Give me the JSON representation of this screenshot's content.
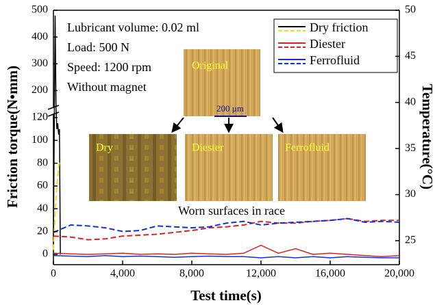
{
  "chart_data": {
    "type": "line",
    "x_label": "Test time(s)",
    "y_label": "Friction torque(N•mm)",
    "y2_label": "Temperature(°C)",
    "annotations": [
      "Lubricant volume: 0.02 ml",
      "Load: 500 N",
      "Speed: 1200 rpm",
      "Without magnet"
    ],
    "inset_labels": [
      "Original",
      "Dry",
      "Diester",
      "Ferrofluid"
    ],
    "scale_bar": "200 μm",
    "inset_caption": "Worn surfaces in race",
    "xlim": [
      0,
      20000
    ],
    "xticks": [
      0,
      {
        "value": 4000,
        "label": "4,000"
      },
      {
        "value": 8000,
        "label": "8,000"
      },
      {
        "value": 12000,
        "label": "12,000"
      },
      {
        "value": 16000,
        "label": "16,000"
      },
      {
        "value": 20000,
        "label": "20,000"
      }
    ],
    "ylim": [
      -9,
      500
    ],
    "y_break": [
      120,
      150
    ],
    "yticks": [
      0,
      20,
      40,
      60,
      80,
      100,
      120,
      200,
      300,
      400,
      500
    ],
    "y2lim": [
      22.4,
      50
    ],
    "y2ticks": [
      25,
      30,
      35,
      40,
      45,
      50
    ],
    "legend": "upper right",
    "series": [
      {
        "name": "Dry friction",
        "color": "#000000",
        "x": [
          0,
          50,
          100,
          150,
          200,
          250,
          300,
          350,
          400
        ],
        "values": [
          10,
          120,
          480,
          130,
          110,
          115,
          105,
          110,
          0
        ]
      },
      {
        "name": "Diester",
        "color": "#e02020",
        "x": [
          0,
          1000,
          2000,
          3000,
          4000,
          5000,
          6000,
          7000,
          8000,
          9000,
          10000,
          11000,
          12000,
          13000,
          14000,
          15000,
          16000,
          17000,
          18000,
          19000,
          20000
        ],
        "values": [
          1,
          0.5,
          0,
          0.5,
          1,
          0,
          0.5,
          0,
          1,
          0.5,
          0,
          1,
          8,
          1,
          5,
          0,
          1,
          0,
          -1,
          -2,
          -1
        ]
      },
      {
        "name": "Ferrofluid",
        "color": "#1030e0",
        "x": [
          0,
          1000,
          2000,
          3000,
          4000,
          5000,
          6000,
          7000,
          8000,
          9000,
          10000,
          11000,
          12000,
          13000,
          14000,
          15000,
          16000,
          17000,
          18000,
          19000,
          20000
        ],
        "values": [
          -1,
          -1.5,
          -2,
          -1,
          -2,
          -1.5,
          -2,
          -2.5,
          -2,
          -1.5,
          -2,
          -2,
          -3,
          -2,
          -3,
          -2,
          -3,
          -2,
          -2.5,
          -3,
          -3
        ]
      },
      {
        "color": "#e8e020",
        "axis": "y2",
        "dashed": true,
        "x": [
          0,
          100,
          200,
          300,
          350
        ],
        "values": [
          24,
          28,
          31,
          33,
          33.5
        ]
      },
      {
        "color": "#e02020",
        "axis": "y2",
        "dashed": true,
        "x": [
          0,
          1000,
          2000,
          3000,
          4000,
          5000,
          6000,
          7000,
          8000,
          9000,
          10000,
          11000,
          12000,
          13000,
          14000,
          15000,
          16000,
          17000,
          18000,
          19000,
          20000
        ],
        "values": [
          25.5,
          25.4,
          25.1,
          25.2,
          25.5,
          25.6,
          25.7,
          25.9,
          26.1,
          26.4,
          26.5,
          26.7,
          27.1,
          26.9,
          26.9,
          27.1,
          27.2,
          27.4,
          27.1,
          27.2,
          27.2
        ]
      },
      {
        "color": "#1030e0",
        "axis": "y2",
        "dashed": true,
        "x": [
          0,
          1000,
          2000,
          3000,
          4000,
          5000,
          6000,
          7000,
          8000,
          9000,
          10000,
          11000,
          12000,
          13000,
          14000,
          15000,
          16000,
          17000,
          18000,
          19000,
          20000
        ],
        "values": [
          25.9,
          26.7,
          26.6,
          26.4,
          26.0,
          26.1,
          26.6,
          26.5,
          26.4,
          26.5,
          26.9,
          27.1,
          26.7,
          26.9,
          27.0,
          27.1,
          27.2,
          27.4,
          27.0,
          27.1,
          27.0
        ]
      }
    ]
  }
}
